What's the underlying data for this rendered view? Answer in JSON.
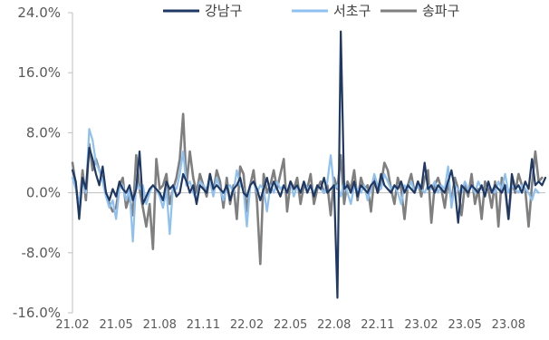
{
  "chart_data": {
    "type": "line",
    "title": "",
    "xlabel": "",
    "ylabel": "",
    "ylim": [
      -16,
      24
    ],
    "yticks": [
      -16,
      -8,
      0,
      8,
      16,
      24
    ],
    "ytick_labels": [
      "-16.0%",
      "-8.0%",
      "0.0%",
      "8.0%",
      "16.0%",
      "24.0%"
    ],
    "x_tick_labels": [
      "21.02",
      "21.05",
      "21.08",
      "21.11",
      "22.02",
      "22.05",
      "22.08",
      "22.11",
      "23.02",
      "23.05",
      "23.08"
    ],
    "x_tick_index": [
      0,
      13,
      26,
      39,
      52,
      65,
      78,
      91,
      104,
      117,
      130
    ],
    "legend_position": "top",
    "gridlines": false,
    "series": [
      {
        "name": "강남구",
        "color": "#1f3864",
        "values": [
          3.0,
          1.5,
          -3.5,
          2.0,
          0.5,
          6.0,
          4.5,
          2.5,
          1.0,
          3.5,
          0.0,
          -1.0,
          0.5,
          -0.5,
          1.5,
          0.5,
          0.0,
          1.0,
          -1.0,
          0.5,
          5.5,
          -1.5,
          -0.5,
          0.5,
          1.0,
          0.5,
          0.0,
          -1.0,
          1.5,
          0.5,
          1.0,
          -0.5,
          0.0,
          2.5,
          1.5,
          0.0,
          1.0,
          -1.5,
          1.0,
          0.5,
          0.0,
          2.5,
          0.5,
          1.0,
          0.5,
          0.0,
          1.0,
          -1.0,
          0.5,
          1.0,
          2.0,
          0.0,
          -0.5,
          1.0,
          1.5,
          0.5,
          -1.0,
          0.5,
          2.0,
          0.0,
          1.5,
          0.5,
          -0.5,
          1.0,
          0.0,
          1.5,
          0.5,
          1.0,
          0.0,
          1.5,
          0.0,
          1.0,
          -0.5,
          1.0,
          0.5,
          2.0,
          0.0,
          0.5,
          1.0,
          -14.0,
          21.5,
          0.5,
          1.0,
          0.0,
          1.5,
          -0.5,
          1.0,
          0.5,
          0.0,
          1.0,
          1.5,
          0.0,
          2.5,
          1.0,
          0.5,
          0.0,
          1.0,
          0.5,
          1.5,
          0.0,
          1.0,
          0.5,
          0.0,
          1.5,
          0.5,
          4.0,
          0.5,
          1.0,
          0.0,
          1.0,
          0.5,
          0.0,
          1.5,
          3.0,
          0.5,
          -4.0,
          1.0,
          0.5,
          0.0,
          1.0,
          0.5,
          0.0,
          1.0,
          -0.5,
          1.5,
          0.0,
          1.0,
          0.5,
          0.0,
          1.0,
          -3.5,
          2.5,
          0.5,
          1.0,
          0.0,
          1.5,
          0.5,
          4.5,
          1.0,
          1.5,
          1.0,
          2.0
        ]
      },
      {
        "name": "서초구",
        "color": "#8fc1f0",
        "values": [
          2.0,
          0.5,
          -1.5,
          1.5,
          0.0,
          8.5,
          7.0,
          4.0,
          3.0,
          1.5,
          -0.5,
          -2.0,
          -1.0,
          -3.5,
          0.5,
          1.0,
          -1.0,
          0.5,
          -6.5,
          1.5,
          0.5,
          1.0,
          -1.5,
          0.0,
          1.0,
          0.5,
          -0.5,
          -2.0,
          0.5,
          -5.5,
          1.0,
          0.5,
          2.5,
          5.5,
          1.0,
          1.5,
          0.0,
          -1.0,
          1.5,
          1.0,
          0.5,
          1.5,
          -0.5,
          2.0,
          0.5,
          -1.0,
          0.5,
          1.0,
          0.0,
          3.0,
          1.0,
          0.5,
          -4.5,
          1.0,
          1.5,
          0.0,
          1.0,
          0.5,
          -2.5,
          1.0,
          0.0,
          1.5,
          0.5,
          1.0,
          0.0,
          1.5,
          -0.5,
          1.0,
          0.0,
          1.5,
          0.5,
          1.0,
          0.0,
          1.0,
          0.5,
          0.0,
          1.5,
          5.0,
          0.5,
          1.0,
          -0.5,
          1.5,
          0.0,
          -1.5,
          1.0,
          0.5,
          0.0,
          1.0,
          -1.0,
          0.5,
          2.5,
          1.0,
          0.5,
          2.5,
          1.5,
          0.5,
          1.0,
          0.0,
          -1.5,
          1.0,
          0.5,
          1.5,
          0.0,
          1.0,
          0.5,
          0.0,
          1.0,
          0.5,
          1.5,
          0.0,
          1.0,
          0.5,
          3.5,
          -2.0,
          1.0,
          0.5,
          0.0,
          1.5,
          0.5,
          1.0,
          0.0,
          1.5,
          0.5,
          0.0,
          1.0,
          0.5,
          0.0,
          1.5,
          0.5,
          2.5,
          0.0,
          1.0,
          0.5,
          0.0,
          1.0,
          0.5,
          0.0,
          -1.0,
          0.5,
          0.0
        ]
      },
      {
        "name": "송파구",
        "color": "#7f7f7f",
        "values": [
          4.0,
          1.0,
          -2.5,
          3.0,
          -1.0,
          6.5,
          3.0,
          4.5,
          3.0,
          2.0,
          0.0,
          -1.5,
          -2.5,
          -2.0,
          1.0,
          2.0,
          -2.0,
          -0.5,
          -3.0,
          5.0,
          0.5,
          -2.0,
          -4.5,
          -1.5,
          -7.5,
          4.5,
          0.5,
          1.0,
          2.5,
          -1.5,
          0.5,
          2.0,
          4.5,
          10.5,
          1.0,
          5.5,
          2.0,
          0.0,
          2.5,
          1.0,
          -0.5,
          2.5,
          0.0,
          3.0,
          1.5,
          -2.0,
          2.0,
          -1.5,
          1.0,
          -3.5,
          3.5,
          2.5,
          -2.5,
          1.0,
          3.0,
          -1.0,
          -9.5,
          2.5,
          0.0,
          1.0,
          3.0,
          0.5,
          2.5,
          4.5,
          -2.5,
          1.5,
          0.5,
          2.0,
          -1.5,
          1.0,
          0.5,
          2.5,
          -1.5,
          0.5,
          1.5,
          0.0,
          1.0,
          -3.0,
          2.0,
          0.5,
          5.0,
          -1.5,
          1.5,
          0.5,
          3.0,
          -1.0,
          2.0,
          0.5,
          1.0,
          -2.5,
          2.0,
          0.0,
          1.0,
          4.0,
          3.0,
          0.5,
          -1.5,
          2.0,
          0.5,
          -3.5,
          1.0,
          2.5,
          0.0,
          1.5,
          -0.5,
          2.0,
          3.0,
          -4.0,
          1.0,
          2.0,
          0.5,
          -2.0,
          1.5,
          -1.0,
          2.0,
          0.5,
          -3.0,
          1.0,
          -0.5,
          2.5,
          -1.5,
          0.5,
          -3.5,
          1.5,
          0.5,
          -2.0,
          1.5,
          -4.5,
          2.0,
          0.5,
          -3.5,
          1.5,
          0.0,
          2.5,
          1.0,
          0.5,
          -4.5,
          1.0,
          5.5,
          1.5,
          2.0
        ]
      }
    ]
  }
}
